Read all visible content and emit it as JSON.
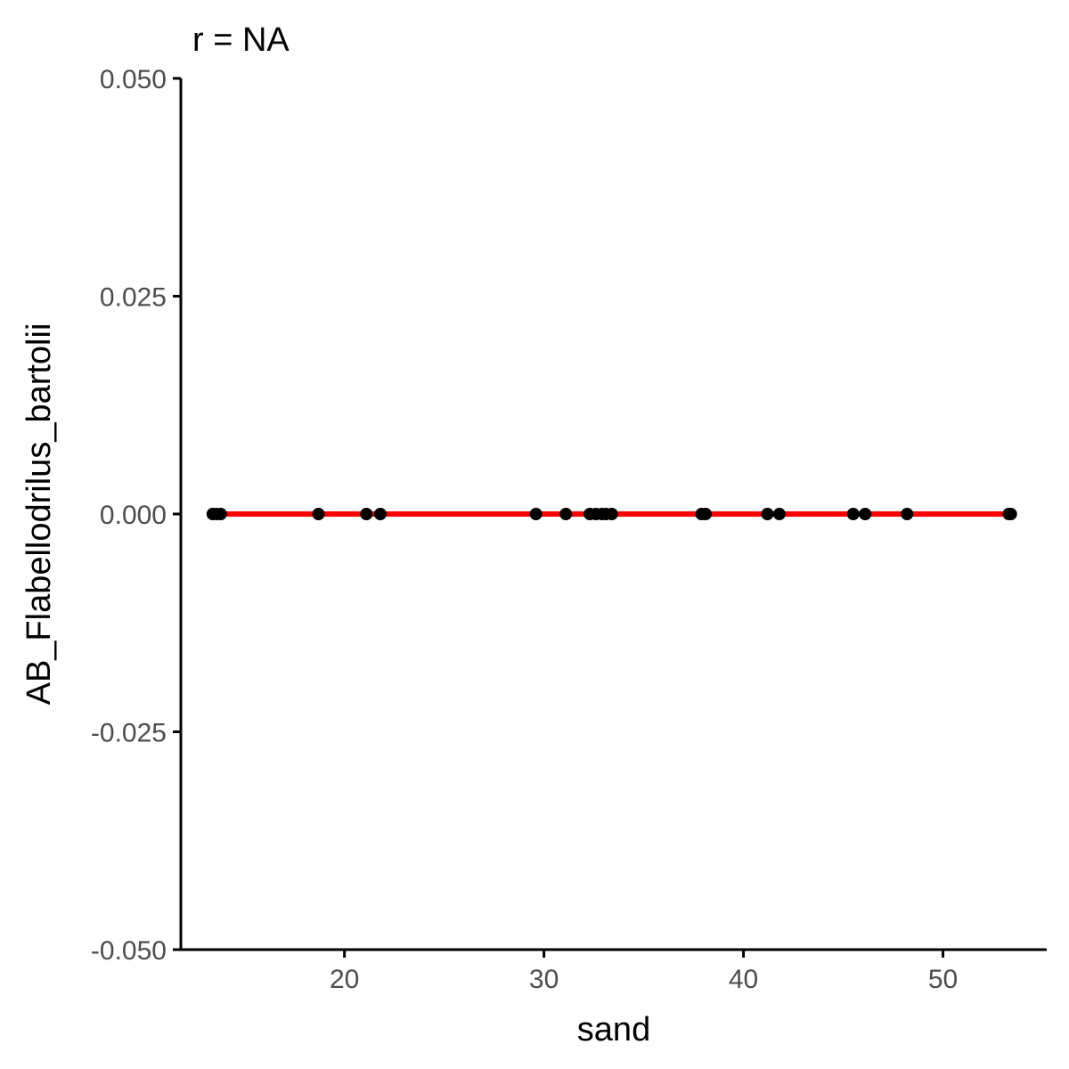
{
  "chart_data": {
    "type": "scatter",
    "title": "r = NA",
    "xlabel": "sand",
    "ylabel": "AB_Flabellodrilus_bartolii",
    "xlim": [
      11.8,
      55.2
    ],
    "ylim": [
      -0.05,
      0.05
    ],
    "x_ticks": [
      20,
      30,
      40,
      50
    ],
    "x_tick_labels": [
      "20",
      "30",
      "40",
      "50"
    ],
    "y_ticks": [
      -0.05,
      -0.025,
      0,
      0.025,
      0.05
    ],
    "y_tick_labels": [
      "-0.050",
      "-0.025",
      "0.000",
      "0.025",
      "0.050"
    ],
    "grid": false,
    "legend": "none",
    "point_color": "#000000",
    "line_color": "#ff0000",
    "points": {
      "x": [
        13.4,
        13.6,
        13.8,
        18.7,
        21.1,
        21.8,
        29.6,
        31.1,
        32.3,
        32.6,
        32.9,
        33.1,
        33.4,
        37.9,
        38.1,
        41.2,
        41.8,
        45.5,
        46.1,
        48.2,
        53.3,
        53.4
      ],
      "y": [
        0,
        0,
        0,
        0,
        0,
        0,
        0,
        0,
        0,
        0,
        0,
        0,
        0,
        0,
        0,
        0,
        0,
        0,
        0,
        0,
        0,
        0
      ]
    },
    "fit_line": {
      "x": [
        13.4,
        53.4
      ],
      "y": [
        0,
        0
      ]
    }
  }
}
